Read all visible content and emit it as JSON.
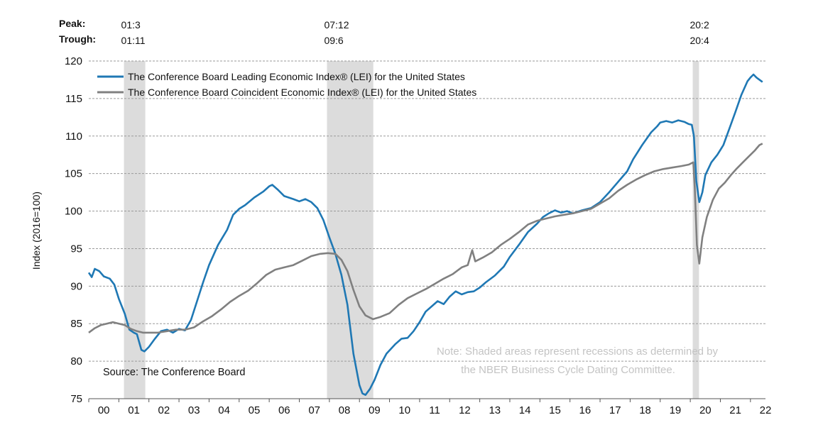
{
  "chart_data": {
    "type": "line",
    "ylabel": "Index (2016=100)",
    "xlabel": "",
    "ylim": [
      75,
      120
    ],
    "yticks": [
      75,
      80,
      85,
      90,
      95,
      100,
      105,
      110,
      115,
      120
    ],
    "xtick_labels": [
      "00",
      "01",
      "02",
      "03",
      "04",
      "05",
      "06",
      "07",
      "08",
      "09",
      "10",
      "11",
      "12",
      "13",
      "14",
      "15",
      "16",
      "17",
      "18",
      "19",
      "20",
      "21",
      "22"
    ],
    "xlim": [
      2000.0,
      2022.5
    ],
    "grid": "horizontal dashed",
    "legend_position": "top-left",
    "header": {
      "peak_label": "Peak:",
      "trough_label": "Trough:"
    },
    "recessions": [
      {
        "peak": "01:3",
        "trough": "01:11",
        "start": 2001.17,
        "end": 2001.88
      },
      {
        "peak": "07:12",
        "trough": "09:6",
        "start": 2007.92,
        "end": 2009.46
      },
      {
        "peak": "20:2",
        "trough": "20:4",
        "start": 2020.08,
        "end": 2020.29
      }
    ],
    "series": [
      {
        "name": "The Conference Board Leading Economic Index® (LEI) for the United States",
        "color": "#1f78b4",
        "points": [
          [
            2000.0,
            91.8
          ],
          [
            2000.1,
            91.2
          ],
          [
            2000.2,
            92.3
          ],
          [
            2000.35,
            92.0
          ],
          [
            2000.5,
            91.3
          ],
          [
            2000.7,
            91.0
          ],
          [
            2000.85,
            90.2
          ],
          [
            2001.0,
            88.3
          ],
          [
            2001.2,
            86.3
          ],
          [
            2001.35,
            84.2
          ],
          [
            2001.5,
            83.8
          ],
          [
            2001.6,
            83.6
          ],
          [
            2001.75,
            81.5
          ],
          [
            2001.85,
            81.3
          ],
          [
            2002.0,
            81.9
          ],
          [
            2002.2,
            83.0
          ],
          [
            2002.4,
            84.0
          ],
          [
            2002.6,
            84.2
          ],
          [
            2002.8,
            83.8
          ],
          [
            2003.0,
            84.3
          ],
          [
            2003.2,
            84.1
          ],
          [
            2003.4,
            85.5
          ],
          [
            2003.6,
            88.0
          ],
          [
            2003.8,
            90.5
          ],
          [
            2004.0,
            92.8
          ],
          [
            2004.3,
            95.5
          ],
          [
            2004.6,
            97.5
          ],
          [
            2004.8,
            99.5
          ],
          [
            2005.0,
            100.3
          ],
          [
            2005.2,
            100.8
          ],
          [
            2005.5,
            101.8
          ],
          [
            2005.8,
            102.6
          ],
          [
            2006.0,
            103.3
          ],
          [
            2006.1,
            103.5
          ],
          [
            2006.3,
            102.8
          ],
          [
            2006.5,
            102.0
          ],
          [
            2006.8,
            101.6
          ],
          [
            2007.0,
            101.3
          ],
          [
            2007.2,
            101.6
          ],
          [
            2007.4,
            101.2
          ],
          [
            2007.6,
            100.4
          ],
          [
            2007.8,
            98.8
          ],
          [
            2008.0,
            96.5
          ],
          [
            2008.2,
            94.3
          ],
          [
            2008.4,
            91.5
          ],
          [
            2008.6,
            87.5
          ],
          [
            2008.8,
            81.0
          ],
          [
            2009.0,
            76.8
          ],
          [
            2009.1,
            75.7
          ],
          [
            2009.2,
            75.5
          ],
          [
            2009.35,
            76.3
          ],
          [
            2009.5,
            77.5
          ],
          [
            2009.7,
            79.5
          ],
          [
            2009.9,
            81.0
          ],
          [
            2010.2,
            82.3
          ],
          [
            2010.4,
            83.0
          ],
          [
            2010.6,
            83.1
          ],
          [
            2010.8,
            84.0
          ],
          [
            2011.0,
            85.2
          ],
          [
            2011.2,
            86.6
          ],
          [
            2011.4,
            87.3
          ],
          [
            2011.6,
            88.0
          ],
          [
            2011.8,
            87.6
          ],
          [
            2012.0,
            88.6
          ],
          [
            2012.2,
            89.3
          ],
          [
            2012.4,
            88.9
          ],
          [
            2012.6,
            89.2
          ],
          [
            2012.8,
            89.3
          ],
          [
            2013.0,
            89.8
          ],
          [
            2013.2,
            90.5
          ],
          [
            2013.5,
            91.4
          ],
          [
            2013.8,
            92.6
          ],
          [
            2014.0,
            93.9
          ],
          [
            2014.3,
            95.5
          ],
          [
            2014.6,
            97.2
          ],
          [
            2014.9,
            98.3
          ],
          [
            2015.1,
            99.2
          ],
          [
            2015.3,
            99.7
          ],
          [
            2015.5,
            100.1
          ],
          [
            2015.7,
            99.8
          ],
          [
            2015.9,
            100.0
          ],
          [
            2016.1,
            99.7
          ],
          [
            2016.4,
            100.1
          ],
          [
            2016.7,
            100.4
          ],
          [
            2017.0,
            101.2
          ],
          [
            2017.3,
            102.5
          ],
          [
            2017.6,
            103.9
          ],
          [
            2017.9,
            105.3
          ],
          [
            2018.1,
            106.9
          ],
          [
            2018.4,
            108.8
          ],
          [
            2018.7,
            110.5
          ],
          [
            2018.9,
            111.3
          ],
          [
            2019.0,
            111.8
          ],
          [
            2019.2,
            112.0
          ],
          [
            2019.4,
            111.8
          ],
          [
            2019.6,
            112.1
          ],
          [
            2019.8,
            111.9
          ],
          [
            2019.95,
            111.6
          ],
          [
            2020.05,
            111.5
          ],
          [
            2020.12,
            110.0
          ],
          [
            2020.2,
            104.0
          ],
          [
            2020.3,
            101.2
          ],
          [
            2020.4,
            102.5
          ],
          [
            2020.5,
            104.8
          ],
          [
            2020.7,
            106.5
          ],
          [
            2020.9,
            107.5
          ],
          [
            2021.1,
            108.8
          ],
          [
            2021.3,
            111.0
          ],
          [
            2021.5,
            113.2
          ],
          [
            2021.7,
            115.5
          ],
          [
            2021.9,
            117.3
          ],
          [
            2022.0,
            117.8
          ],
          [
            2022.1,
            118.2
          ],
          [
            2022.2,
            117.8
          ],
          [
            2022.3,
            117.5
          ],
          [
            2022.4,
            117.2
          ]
        ]
      },
      {
        "name": "The Conference Board Coincident Economic Index® (LEI) for the United States",
        "color": "#808080",
        "points": [
          [
            2000.0,
            83.8
          ],
          [
            2000.2,
            84.4
          ],
          [
            2000.4,
            84.8
          ],
          [
            2000.6,
            85.0
          ],
          [
            2000.8,
            85.2
          ],
          [
            2001.0,
            85.0
          ],
          [
            2001.2,
            84.8
          ],
          [
            2001.4,
            84.3
          ],
          [
            2001.6,
            84.0
          ],
          [
            2001.8,
            83.8
          ],
          [
            2002.0,
            83.8
          ],
          [
            2002.3,
            83.8
          ],
          [
            2002.6,
            84.0
          ],
          [
            2002.9,
            84.2
          ],
          [
            2003.2,
            84.2
          ],
          [
            2003.5,
            84.5
          ],
          [
            2003.8,
            85.3
          ],
          [
            2004.1,
            86.0
          ],
          [
            2004.4,
            86.9
          ],
          [
            2004.7,
            87.9
          ],
          [
            2005.0,
            88.7
          ],
          [
            2005.3,
            89.4
          ],
          [
            2005.6,
            90.4
          ],
          [
            2005.9,
            91.5
          ],
          [
            2006.2,
            92.2
          ],
          [
            2006.5,
            92.5
          ],
          [
            2006.8,
            92.8
          ],
          [
            2007.1,
            93.4
          ],
          [
            2007.4,
            94.0
          ],
          [
            2007.7,
            94.3
          ],
          [
            2007.95,
            94.4
          ],
          [
            2008.2,
            94.3
          ],
          [
            2008.4,
            93.5
          ],
          [
            2008.6,
            92.0
          ],
          [
            2008.8,
            89.5
          ],
          [
            2009.0,
            87.3
          ],
          [
            2009.2,
            86.1
          ],
          [
            2009.45,
            85.6
          ],
          [
            2009.7,
            85.9
          ],
          [
            2010.0,
            86.4
          ],
          [
            2010.3,
            87.5
          ],
          [
            2010.6,
            88.4
          ],
          [
            2010.9,
            89.0
          ],
          [
            2011.2,
            89.6
          ],
          [
            2011.5,
            90.3
          ],
          [
            2011.8,
            91.0
          ],
          [
            2012.1,
            91.6
          ],
          [
            2012.4,
            92.5
          ],
          [
            2012.6,
            92.8
          ],
          [
            2012.75,
            94.8
          ],
          [
            2012.85,
            93.3
          ],
          [
            2013.1,
            93.8
          ],
          [
            2013.4,
            94.5
          ],
          [
            2013.7,
            95.5
          ],
          [
            2014.0,
            96.3
          ],
          [
            2014.3,
            97.2
          ],
          [
            2014.6,
            98.2
          ],
          [
            2014.9,
            98.7
          ],
          [
            2015.2,
            99.0
          ],
          [
            2015.5,
            99.3
          ],
          [
            2015.8,
            99.5
          ],
          [
            2016.1,
            99.7
          ],
          [
            2016.4,
            100.0
          ],
          [
            2016.7,
            100.3
          ],
          [
            2017.0,
            101.0
          ],
          [
            2017.3,
            101.7
          ],
          [
            2017.6,
            102.7
          ],
          [
            2017.9,
            103.5
          ],
          [
            2018.2,
            104.2
          ],
          [
            2018.5,
            104.8
          ],
          [
            2018.8,
            105.3
          ],
          [
            2019.1,
            105.6
          ],
          [
            2019.4,
            105.8
          ],
          [
            2019.7,
            106.0
          ],
          [
            2019.95,
            106.2
          ],
          [
            2020.1,
            106.5
          ],
          [
            2020.15,
            103.0
          ],
          [
            2020.22,
            95.5
          ],
          [
            2020.3,
            93.0
          ],
          [
            2020.4,
            96.5
          ],
          [
            2020.55,
            99.2
          ],
          [
            2020.75,
            101.5
          ],
          [
            2020.95,
            103.0
          ],
          [
            2021.15,
            103.8
          ],
          [
            2021.35,
            104.8
          ],
          [
            2021.55,
            105.7
          ],
          [
            2021.75,
            106.5
          ],
          [
            2021.95,
            107.3
          ],
          [
            2022.15,
            108.1
          ],
          [
            2022.3,
            108.8
          ],
          [
            2022.4,
            109.0
          ]
        ]
      }
    ],
    "source": "Source: The Conference Board",
    "note_line1": "Note: Shaded areas represent recessions as determined by",
    "note_line2": "the NBER Business Cycle Dating Committee."
  }
}
